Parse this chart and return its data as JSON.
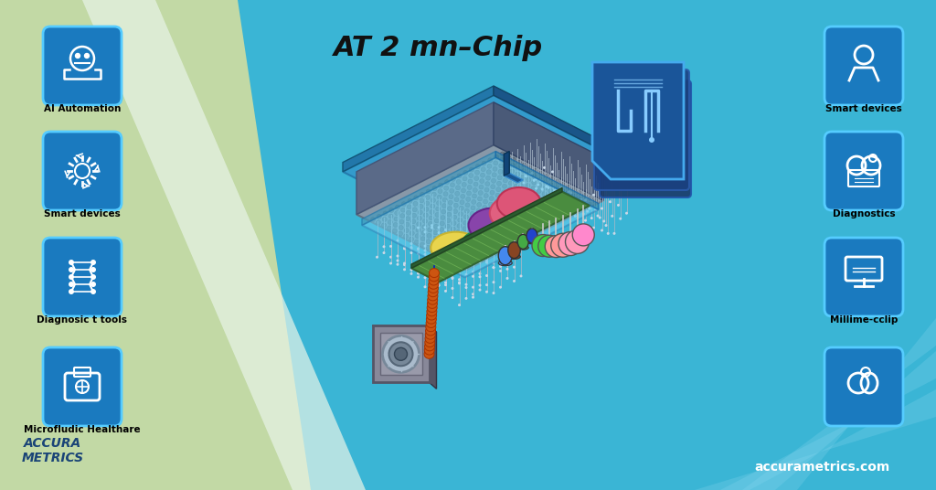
{
  "bg_blue_main": "#3ab5d5",
  "bg_green": "#c2d9a5",
  "bg_green_stripe": "#daeec8",
  "bg_light_blue_right": "#5ac8e0",
  "icon_bg": "#1a7abf",
  "icon_border": "#55ccff",
  "title_text": "AT 2 mn–Chip",
  "title_color": "#111111",
  "title_fontsize": 22,
  "footer_left_line1": "ACCURA",
  "footer_left_line2": "METRICS",
  "footer_left_color": "#1a4477",
  "footer_right_text": "accurametrics.com",
  "footer_right_color": "#ffffff",
  "left_labels": [
    "AI Automation",
    "Smart devices",
    "Diagnosic t tools",
    "Microfludic Healthare"
  ],
  "right_labels": [
    "Smart devices",
    "Diagnostics",
    "Millime-cclip",
    ""
  ],
  "platform_blue": "#3399cc",
  "platform_blue_dark": "#1a6688",
  "base_top_gray": "#8899a8",
  "base_top_gray2": "#9aabb8",
  "base_front_gray": "#6677aa",
  "base_side_gray": "#556699",
  "base_dark_dots": "#5a6a7a",
  "micro_blue": "#5ab4d8",
  "micro_blue_light": "#7dd0e8",
  "micro_blue_edge": "#2277aa",
  "green_board": "#4a8c3f",
  "green_board_dark": "#336633",
  "needle_gray": "#a8b8c8",
  "needle_tip": "#c8d8e8",
  "connector_gray1": "#909090",
  "connector_gray2": "#b0b0b8",
  "connector_gray3": "#787888",
  "cable_blue": "#2255bb",
  "cable_blue_dark": "#1133aa",
  "coil_orange": "#cc5511",
  "coil_brown": "#aa3300",
  "yellow_sample": "#e8d44d",
  "green_sample": "#44aa66",
  "purple_sample": "#8844aa",
  "pink_sample": "#e86080",
  "pink_sample2": "#dd5577",
  "blueprint_bg": "#1a4488",
  "blueprint_border": "#55aaee",
  "blueprint_icon": "#88ccff",
  "blue_connector_block": "#1a5590",
  "white_diag_strip": "#e8f4e8"
}
